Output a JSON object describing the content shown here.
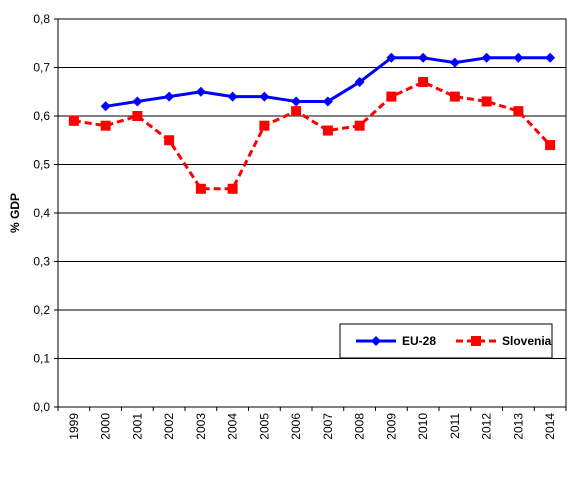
{
  "chart_data": {
    "type": "line",
    "title": "",
    "xlabel": "",
    "ylabel": "% GDP",
    "ylim": [
      0,
      0.8
    ],
    "y_ticks": [
      "0,0",
      "0,1",
      "0,2",
      "0,3",
      "0,4",
      "0,5",
      "0,6",
      "0,7",
      "0,8"
    ],
    "categories": [
      "1999",
      "2000",
      "2001",
      "2002",
      "2003",
      "2004",
      "2005",
      "2006",
      "2007",
      "2008",
      "2009",
      "2010",
      "2011",
      "2012",
      "2013",
      "2014"
    ],
    "grid": "horizontal",
    "legend_position": "bottom-right",
    "series": [
      {
        "name": "EU-28",
        "color": "#0000ff",
        "marker": "diamond",
        "line_style": "solid",
        "values": [
          null,
          0.62,
          0.63,
          0.64,
          0.65,
          0.64,
          0.64,
          0.63,
          0.63,
          0.67,
          0.72,
          0.72,
          0.71,
          0.72,
          0.72,
          0.72
        ]
      },
      {
        "name": "Slovenia",
        "color": "#ff0000",
        "marker": "square",
        "line_style": "dashed",
        "values": [
          0.59,
          0.58,
          0.6,
          0.55,
          0.45,
          0.45,
          0.58,
          0.61,
          0.57,
          0.58,
          0.64,
          0.67,
          0.64,
          0.63,
          0.61,
          0.54
        ]
      }
    ]
  }
}
